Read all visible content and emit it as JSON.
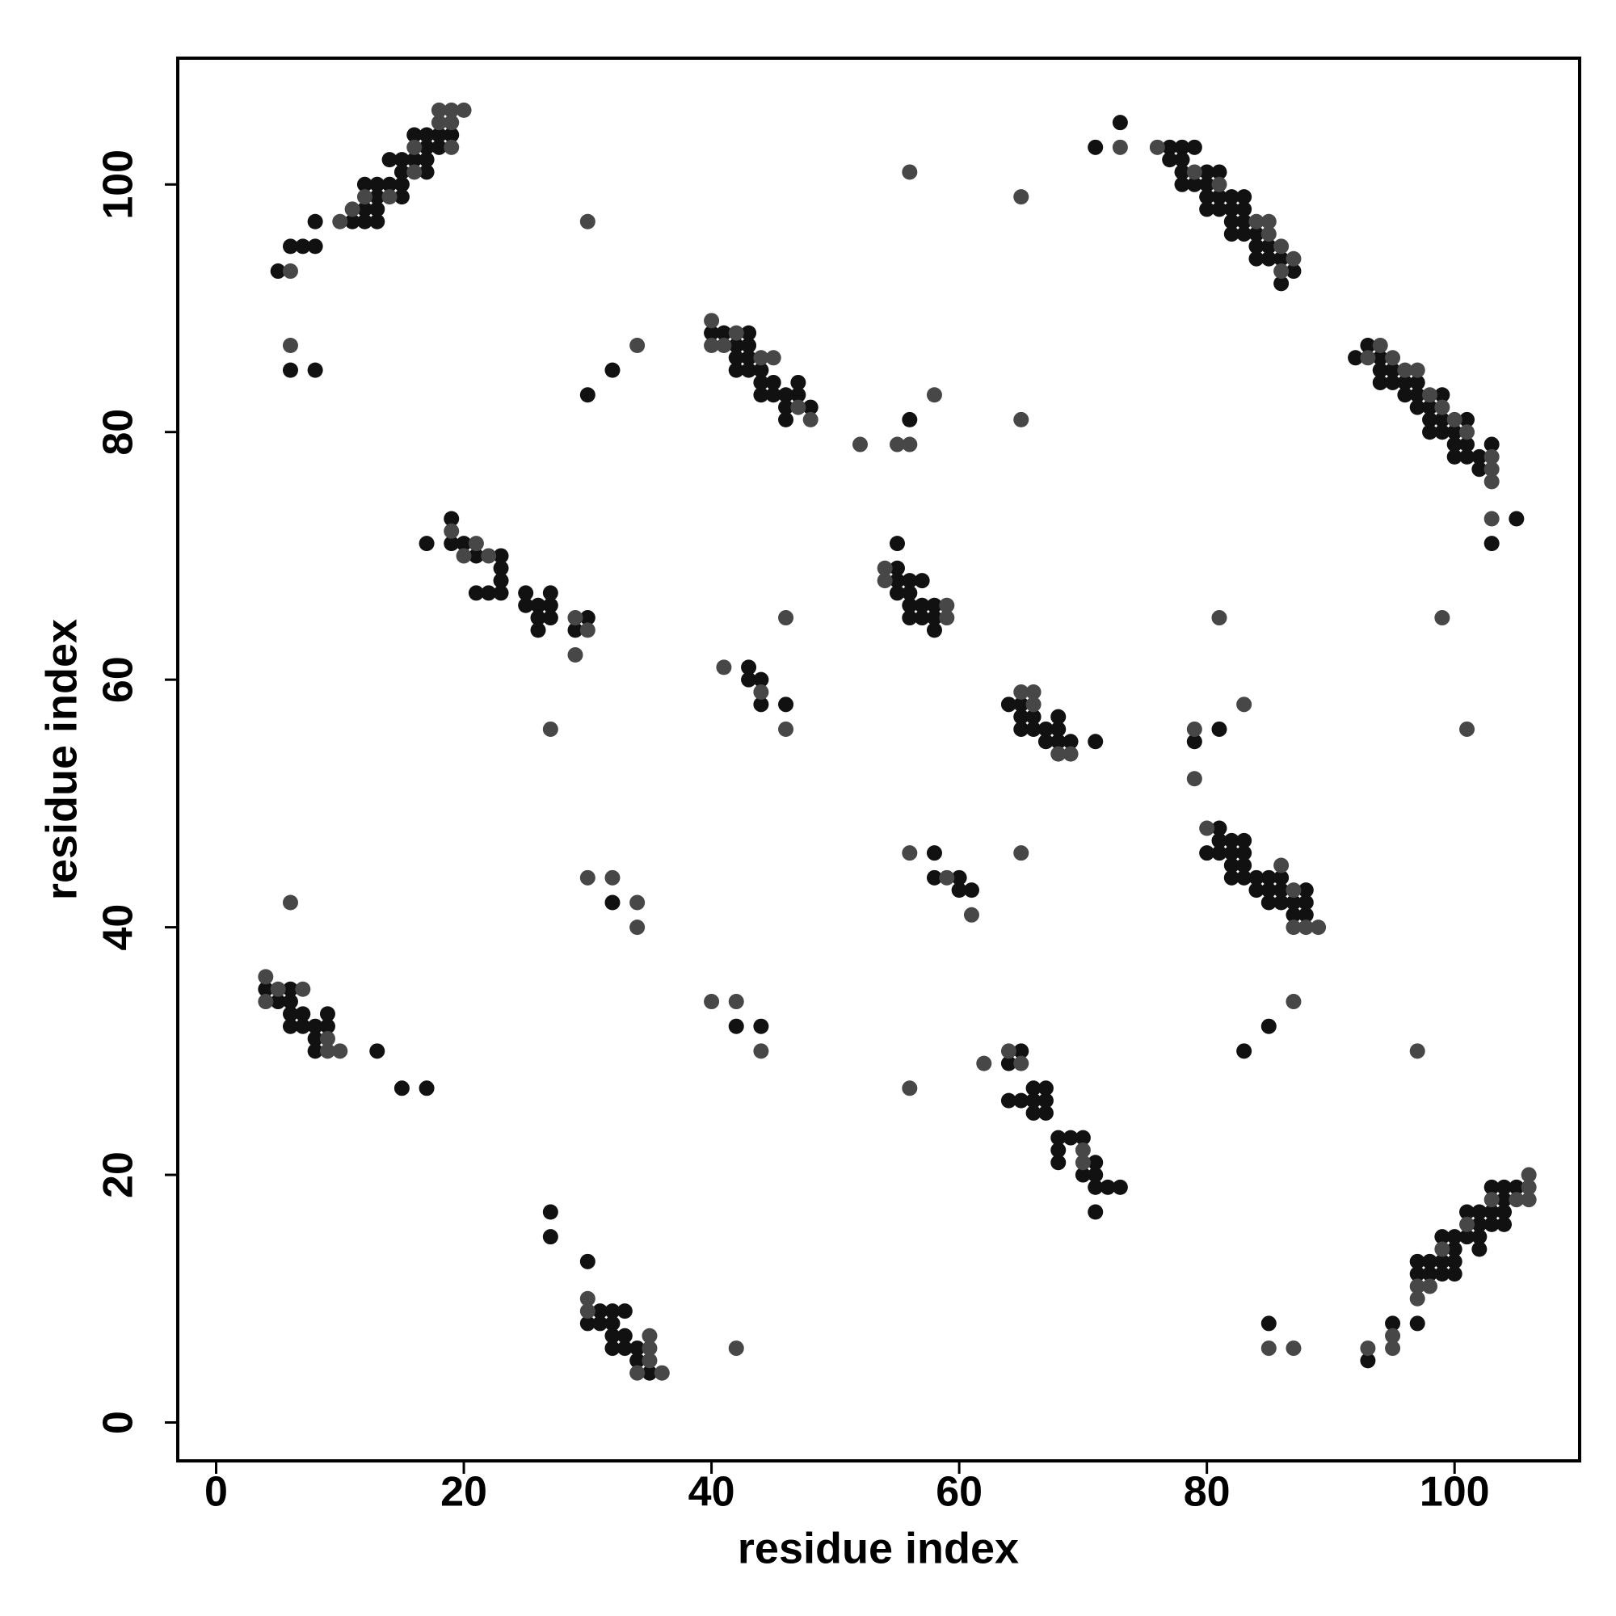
{
  "chart_data": {
    "type": "scatter",
    "xlabel": "residue index",
    "ylabel": "residue index",
    "xlim": [
      -3.1,
      110.1
    ],
    "ylim": [
      -3.1,
      110.2
    ],
    "xticks": [
      0,
      20,
      40,
      60,
      80,
      100
    ],
    "yticks": [
      0,
      20,
      40,
      60,
      80,
      100
    ],
    "series": [
      {
        "color": "#111111",
        "x": [
          5,
          6,
          7,
          8,
          8,
          11,
          12,
          12,
          12,
          13,
          13,
          13,
          13,
          14,
          14,
          15,
          15,
          15,
          15,
          16,
          16,
          17,
          17,
          17,
          17,
          18,
          18,
          19,
          6,
          8,
          30,
          32,
          40,
          41,
          42,
          42,
          42,
          43,
          43,
          43,
          43,
          44,
          44,
          44,
          45,
          45,
          46,
          46,
          46,
          47,
          47,
          48,
          56,
          71,
          73,
          77,
          77,
          78,
          78,
          78,
          78,
          79,
          79,
          80,
          80,
          80,
          80,
          81,
          81,
          81,
          82,
          82,
          82,
          82,
          83,
          83,
          83,
          83,
          84,
          84,
          84,
          85,
          85,
          86,
          86,
          87,
          92,
          93,
          94,
          94,
          94,
          95,
          95,
          96,
          96,
          97,
          97,
          97,
          98,
          98,
          98,
          99,
          99,
          99,
          100,
          100,
          100,
          101,
          101,
          101,
          102,
          102,
          103,
          103,
          105,
          17,
          19,
          19,
          20,
          21,
          21,
          22,
          23,
          23,
          23,
          23,
          25,
          25,
          26,
          26,
          26,
          27,
          27,
          27,
          29,
          30,
          55,
          55,
          55,
          55,
          56,
          56,
          56,
          56,
          57,
          57,
          57,
          58,
          58,
          58,
          43,
          43,
          44,
          44,
          46,
          64,
          65,
          65,
          65,
          66,
          66,
          67,
          67,
          68,
          68,
          68,
          69,
          71,
          79,
          81,
          80,
          81,
          81,
          81,
          82,
          82,
          82,
          82,
          83,
          83,
          83,
          83,
          84,
          84,
          85,
          85,
          85,
          86,
          86,
          86,
          87,
          87,
          88,
          88,
          88,
          58,
          58,
          60,
          60,
          61,
          32,
          4,
          5,
          6,
          6,
          6,
          6,
          7,
          7,
          8,
          8,
          8,
          9,
          9,
          13,
          15,
          17,
          42,
          44,
          85,
          83,
          64,
          64,
          65,
          65,
          66,
          66,
          66,
          67,
          67,
          67,
          68,
          68,
          68,
          69,
          70,
          70,
          71,
          71,
          71,
          71,
          72,
          73,
          27,
          27,
          30,
          30,
          31,
          31,
          32,
          32,
          32,
          32,
          33,
          33,
          33,
          34,
          34,
          35,
          85,
          93,
          95,
          97,
          97,
          97,
          98,
          98,
          99,
          99,
          99,
          100,
          100,
          100,
          100,
          101,
          101,
          102,
          102,
          102,
          102,
          103,
          103,
          103,
          104,
          104,
          104,
          104,
          105
        ],
        "y": [
          93,
          95,
          95,
          95,
          97,
          97,
          97,
          98,
          100,
          97,
          98,
          99,
          100,
          100,
          102,
          99,
          100,
          101,
          102,
          102,
          104,
          101,
          102,
          103,
          104,
          103,
          104,
          104,
          85,
          85,
          83,
          85,
          88,
          88,
          87,
          86,
          85,
          88,
          87,
          86,
          85,
          85,
          84,
          83,
          84,
          83,
          83,
          82,
          81,
          84,
          83,
          82,
          81,
          103,
          105,
          103,
          102,
          103,
          102,
          101,
          100,
          103,
          100,
          101,
          100,
          99,
          98,
          101,
          99,
          98,
          99,
          98,
          97,
          96,
          99,
          98,
          97,
          96,
          96,
          95,
          94,
          95,
          94,
          94,
          92,
          93,
          86,
          87,
          86,
          85,
          84,
          85,
          84,
          84,
          83,
          84,
          83,
          82,
          82,
          81,
          80,
          83,
          81,
          80,
          80,
          79,
          78,
          81,
          79,
          78,
          78,
          77,
          79,
          71,
          73,
          71,
          73,
          71,
          71,
          70,
          67,
          67,
          70,
          69,
          68,
          67,
          67,
          66,
          66,
          65,
          64,
          67,
          66,
          65,
          64,
          65,
          71,
          69,
          68,
          67,
          68,
          67,
          66,
          65,
          68,
          66,
          65,
          66,
          65,
          64,
          61,
          60,
          60,
          58,
          58,
          58,
          58,
          57,
          56,
          57,
          56,
          56,
          55,
          57,
          56,
          55,
          55,
          55,
          55,
          56,
          46,
          48,
          47,
          46,
          47,
          46,
          45,
          44,
          47,
          46,
          45,
          44,
          44,
          43,
          44,
          43,
          42,
          44,
          43,
          42,
          42,
          41,
          43,
          42,
          41,
          46,
          44,
          44,
          43,
          43,
          42,
          35,
          34,
          35,
          34,
          33,
          32,
          33,
          32,
          32,
          31,
          30,
          33,
          32,
          30,
          27,
          27,
          32,
          32,
          32,
          30,
          29,
          26,
          30,
          26,
          27,
          26,
          25,
          27,
          26,
          25,
          23,
          22,
          21,
          23,
          23,
          20,
          21,
          20,
          19,
          17,
          19,
          19,
          17,
          15,
          13,
          8,
          9,
          8,
          9,
          8,
          7,
          6,
          9,
          7,
          6,
          6,
          5,
          4,
          8,
          5,
          8,
          13,
          12,
          8,
          13,
          12,
          15,
          13,
          12,
          15,
          14,
          13,
          12,
          17,
          15,
          17,
          16,
          15,
          14,
          19,
          17,
          16,
          19,
          18,
          17,
          16,
          19
        ]
      },
      {
        "color": "#474747",
        "x": [
          6,
          6,
          10,
          11,
          12,
          14,
          16,
          16,
          18,
          18,
          19,
          19,
          20,
          19,
          30,
          34,
          40,
          40,
          41,
          42,
          44,
          45,
          47,
          48,
          52,
          55,
          56,
          58,
          56,
          65,
          65,
          73,
          76,
          79,
          81,
          84,
          85,
          85,
          86,
          86,
          87,
          93,
          94,
          95,
          96,
          97,
          98,
          99,
          100,
          101,
          103,
          103,
          103,
          103,
          19,
          20,
          21,
          22,
          29,
          27,
          29,
          30,
          54,
          54,
          59,
          59,
          46,
          41,
          44,
          46,
          65,
          66,
          66,
          68,
          69,
          81,
          99,
          83,
          79,
          101,
          79,
          80,
          86,
          87,
          87,
          88,
          89,
          56,
          59,
          61,
          65,
          30,
          32,
          34,
          34,
          6,
          4,
          4,
          5,
          7,
          9,
          9,
          10,
          40,
          42,
          44,
          87,
          97,
          56,
          62,
          64,
          65,
          70,
          70,
          30,
          30,
          35,
          35,
          35,
          34,
          36,
          42,
          85,
          87,
          93,
          95,
          95,
          97,
          97,
          98,
          99,
          101,
          103,
          105,
          106,
          106,
          106
        ],
        "y": [
          93,
          87,
          97,
          98,
          99,
          99,
          103,
          101,
          105,
          106,
          105,
          106,
          106,
          103,
          97,
          87,
          89,
          87,
          87,
          88,
          86,
          86,
          82,
          81,
          79,
          79,
          79,
          83,
          101,
          99,
          81,
          103,
          103,
          101,
          100,
          97,
          97,
          96,
          95,
          93,
          94,
          86,
          87,
          86,
          85,
          85,
          83,
          82,
          81,
          80,
          78,
          77,
          76,
          73,
          72,
          70,
          71,
          70,
          62,
          56,
          65,
          64,
          69,
          68,
          66,
          65,
          65,
          61,
          59,
          56,
          59,
          59,
          58,
          54,
          54,
          65,
          65,
          58,
          56,
          56,
          52,
          48,
          45,
          43,
          40,
          40,
          40,
          46,
          44,
          41,
          46,
          44,
          44,
          42,
          40,
          42,
          36,
          34,
          35,
          35,
          31,
          30,
          30,
          34,
          34,
          30,
          34,
          30,
          27,
          29,
          30,
          29,
          22,
          21,
          10,
          9,
          7,
          6,
          5,
          4,
          4,
          6,
          6,
          6,
          6,
          7,
          6,
          11,
          10,
          11,
          14,
          16,
          18,
          18,
          20,
          19,
          18
        ]
      }
    ]
  }
}
